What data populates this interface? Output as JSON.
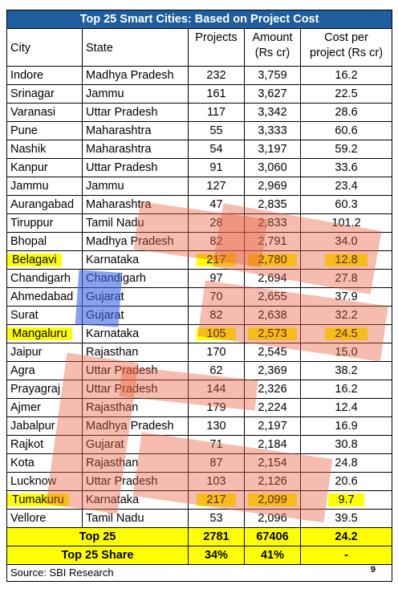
{
  "title": "Top 25 Smart Cities: Based on Project Cost",
  "columns": {
    "city": "City",
    "state": "State",
    "projects": "Projects",
    "amount_line1": "Amount",
    "amount_line2": "(Rs cr)",
    "cost_line1": "Cost per",
    "cost_line2": "project (Rs cr)"
  },
  "rows": [
    {
      "city": "Indore",
      "state": "Madhya Pradesh",
      "projects": "232",
      "amount": "3,759",
      "cost": "16.2"
    },
    {
      "city": "Srinagar",
      "state": "Jammu",
      "projects": "161",
      "amount": "3,627",
      "cost": "22.5"
    },
    {
      "city": "Varanasi",
      "state": "Uttar Pradesh",
      "projects": "117",
      "amount": "3,342",
      "cost": "28.6"
    },
    {
      "city": "Pune",
      "state": "Maharashtra",
      "projects": "55",
      "amount": "3,333",
      "cost": "60.6"
    },
    {
      "city": "Nashik",
      "state": "Maharashtra",
      "projects": "54",
      "amount": "3,197",
      "cost": "59.2"
    },
    {
      "city": "Kanpur",
      "state": "Uttar Pradesh",
      "projects": "91",
      "amount": "3,060",
      "cost": "33.6"
    },
    {
      "city": "Jammu",
      "state": "Jammu",
      "projects": "127",
      "amount": "2,969",
      "cost": "23.4"
    },
    {
      "city": "Aurangabad",
      "state": "Maharashtra",
      "projects": "47",
      "amount": "2,835",
      "cost": "60.3"
    },
    {
      "city": "Tiruppur",
      "state": "Tamil Nadu",
      "projects": "28",
      "amount": "2,833",
      "cost": "101.2"
    },
    {
      "city": "Bhopal",
      "state": "Madhya Pradesh",
      "projects": "82",
      "amount": "2,791",
      "cost": "34.0"
    },
    {
      "city": "Belagavi",
      "state": "Karnataka",
      "projects": "217",
      "amount": "2,780",
      "cost": "12.8"
    },
    {
      "city": "Chandigarh",
      "state": "Chandigarh",
      "projects": "97",
      "amount": "2,694",
      "cost": "27.8"
    },
    {
      "city": "Ahmedabad",
      "state": "Gujarat",
      "projects": "70",
      "amount": "2,655",
      "cost": "37.9"
    },
    {
      "city": "Surat",
      "state": "Gujarat",
      "projects": "82",
      "amount": "2,638",
      "cost": "32.2"
    },
    {
      "city": "Mangaluru",
      "state": "Karnataka",
      "projects": "105",
      "amount": "2,573",
      "cost": "24.5"
    },
    {
      "city": "Jaipur",
      "state": "Rajasthan",
      "projects": "170",
      "amount": "2,545",
      "cost": "15.0"
    },
    {
      "city": "Agra",
      "state": "Uttar Pradesh",
      "projects": "62",
      "amount": "2,369",
      "cost": "38.2"
    },
    {
      "city": "Prayagraj",
      "state": "Uttar Pradesh",
      "projects": "144",
      "amount": "2,326",
      "cost": "16.2"
    },
    {
      "city": "Ajmer",
      "state": "Rajasthan",
      "projects": "179",
      "amount": "2,224",
      "cost": "12.4"
    },
    {
      "city": "Jabalpur",
      "state": "Madhya Pradesh",
      "projects": "130",
      "amount": "2,197",
      "cost": "16.9"
    },
    {
      "city": "Rajkot",
      "state": "Gujarat",
      "projects": "71",
      "amount": "2,184",
      "cost": "30.8"
    },
    {
      "city": "Kota",
      "state": "Rajasthan",
      "projects": "87",
      "amount": "2,154",
      "cost": "24.8"
    },
    {
      "city": "Lucknow",
      "state": "Uttar Pradesh",
      "projects": "103",
      "amount": "2,126",
      "cost": "20.6"
    },
    {
      "city": "Tumakuru",
      "state": "Karnataka",
      "projects": "217",
      "amount": "2,099",
      "cost": "9.7"
    },
    {
      "city": "Vellore",
      "state": "Tamil Nadu",
      "projects": "53",
      "amount": "2,096",
      "cost": "39.5"
    }
  ],
  "totals": [
    {
      "label": "Top 25",
      "projects": "2781",
      "amount": "67406",
      "cost": "24.2"
    },
    {
      "label": "Top 25 Share",
      "projects": "34%",
      "amount": "41%",
      "cost": "-"
    }
  ],
  "source": "Source: SBI Research",
  "page_number": "9",
  "highlight_color": "#ffff00",
  "header_color": "#1f5e9e"
}
